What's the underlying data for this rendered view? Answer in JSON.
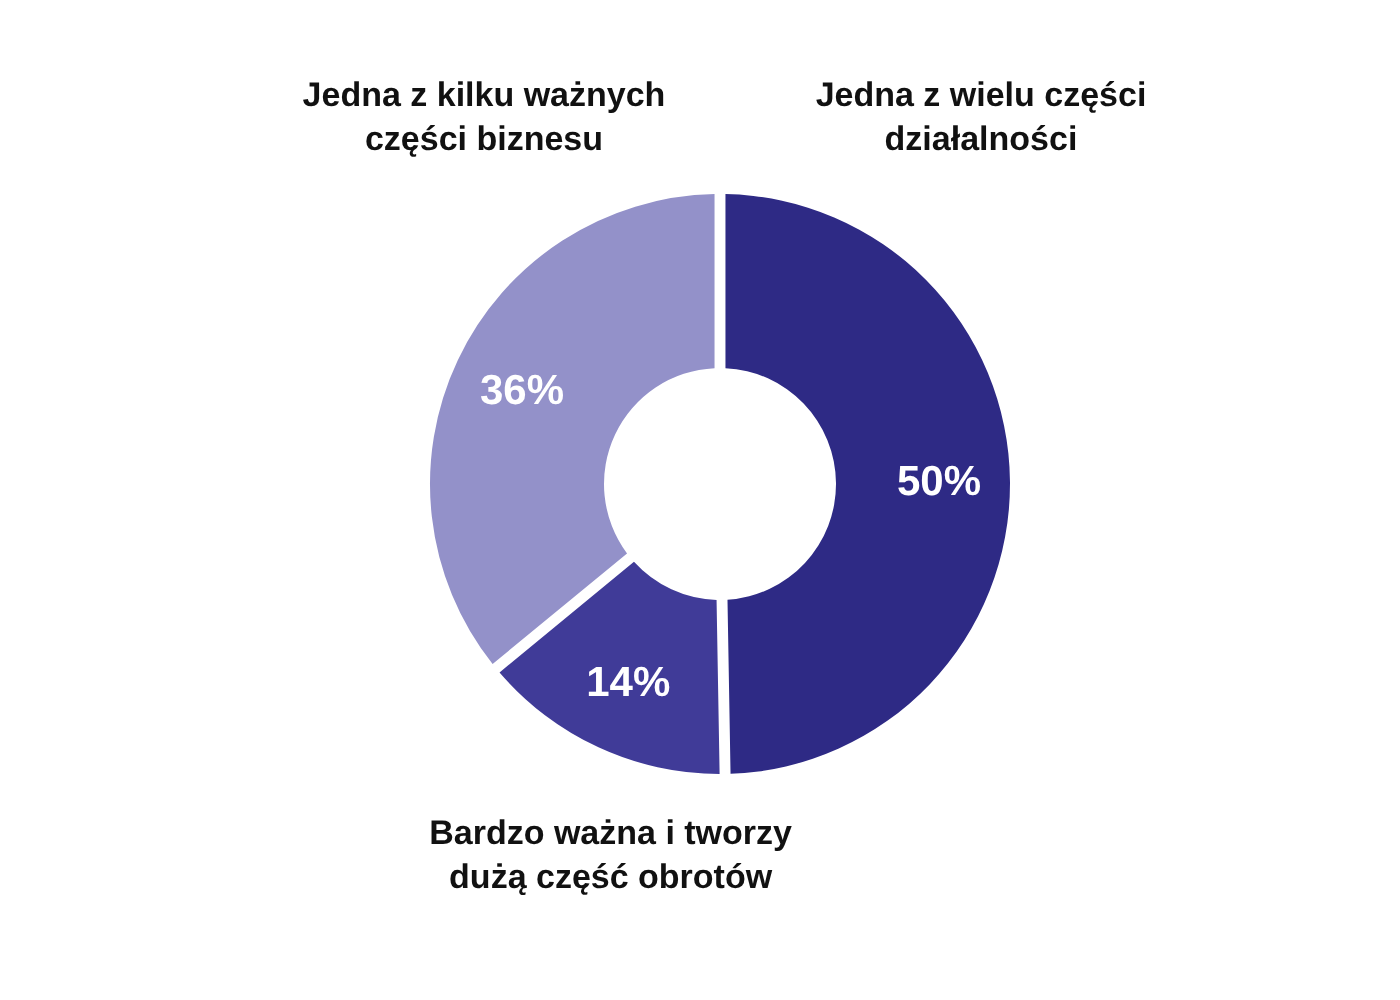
{
  "chart_data": {
    "type": "donut",
    "categories": [
      "Jedna z wielu części działalności",
      "Bardzo ważna i tworzy dużą część obrotów",
      "Jedna z kilku ważnych części biznesu"
    ],
    "values": [
      50,
      14,
      36
    ],
    "colors": [
      "#2e2a85",
      "#403b98",
      "#9391c9"
    ],
    "value_labels": [
      "50%",
      "14%",
      "36%"
    ]
  }
}
